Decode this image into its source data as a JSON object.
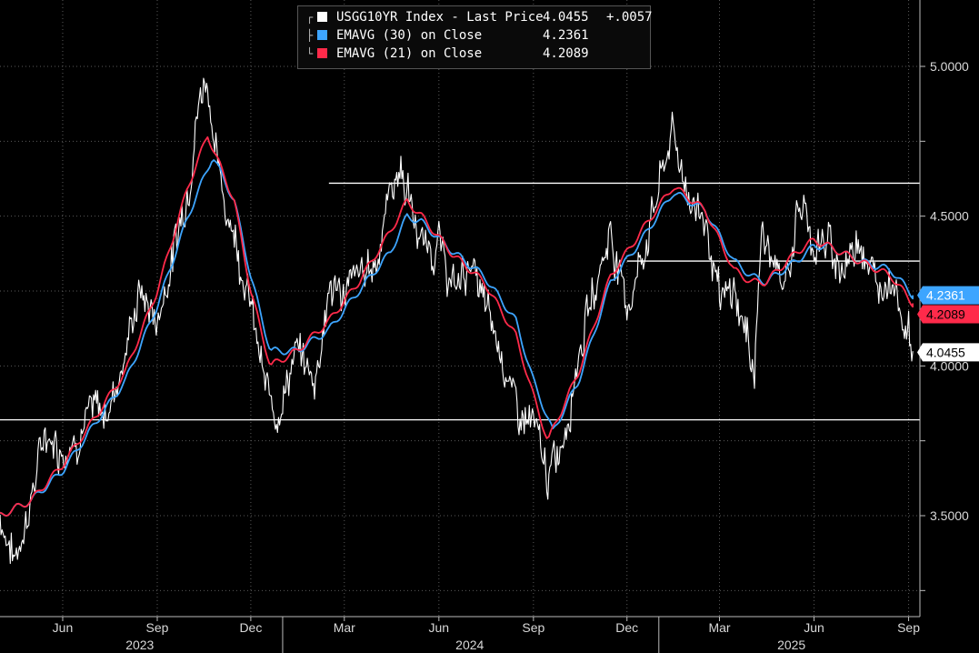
{
  "legend": {
    "items": [
      {
        "name": "USGG10YR Index - Last Price",
        "value": "4.0455",
        "change": "+.0057",
        "color": "#ffffff"
      },
      {
        "name": "EMAVG (30)  on Close",
        "value": "4.2361",
        "change": "",
        "color": "#3da5ff"
      },
      {
        "name": "EMAVG (21)  on Close",
        "value": "4.2089",
        "change": "",
        "color": "#ff2a4a"
      }
    ]
  },
  "tags": {
    "ema30": "4.2361",
    "ema21": "4.2089",
    "last": "4.0455"
  },
  "colors": {
    "background": "#000000",
    "price": "#ffffff",
    "ema30": "#3da5ff",
    "ema21": "#ff2a4a",
    "grid": "#5a5a5a"
  },
  "chart_data": {
    "type": "line",
    "x_ticks": [
      "Jun",
      "Sep",
      "Dec",
      "Mar",
      "Jun",
      "Sep",
      "Dec",
      "Mar",
      "Jun",
      "Sep"
    ],
    "years": [
      "2023",
      "2024",
      "2025"
    ],
    "y_ticks": [
      "5.0000",
      "4.5000",
      "4.0000",
      "3.5000"
    ],
    "ylim": [
      3.25,
      5.1
    ],
    "xlim": [
      "2023-04-01",
      "2025-09-12"
    ],
    "grid": true,
    "legend_position": "top-center",
    "horizontal_lines": [
      {
        "y": 4.61,
        "from": "2024-02-15",
        "to": "2025-09-12"
      },
      {
        "y": 4.35,
        "from": "2024-12-01",
        "to": "2025-09-12"
      },
      {
        "y": 3.82,
        "from": "2023-04-01",
        "to": "2025-09-12"
      }
    ],
    "series": [
      {
        "name": "USGG10YR Index - Last Price",
        "style": "price",
        "x": [
          "2023-04-01",
          "2023-04-15",
          "2023-05-01",
          "2023-05-15",
          "2023-06-01",
          "2023-06-15",
          "2023-07-01",
          "2023-07-15",
          "2023-08-01",
          "2023-08-15",
          "2023-09-01",
          "2023-09-15",
          "2023-10-01",
          "2023-10-10",
          "2023-10-19",
          "2023-11-01",
          "2023-11-15",
          "2023-12-01",
          "2023-12-15",
          "2023-12-27",
          "2024-01-15",
          "2024-02-01",
          "2024-02-15",
          "2024-03-01",
          "2024-03-15",
          "2024-04-01",
          "2024-04-15",
          "2024-04-25",
          "2024-05-15",
          "2024-06-01",
          "2024-06-15",
          "2024-07-01",
          "2024-07-15",
          "2024-08-01",
          "2024-08-15",
          "2024-09-01",
          "2024-09-16",
          "2024-10-01",
          "2024-10-15",
          "2024-11-01",
          "2024-11-15",
          "2024-12-01",
          "2024-12-15",
          "2025-01-01",
          "2025-01-14",
          "2025-02-01",
          "2025-02-15",
          "2025-03-01",
          "2025-03-15",
          "2025-04-04",
          "2025-04-11",
          "2025-05-01",
          "2025-05-20",
          "2025-06-01",
          "2025-06-15",
          "2025-07-01",
          "2025-07-15",
          "2025-08-01",
          "2025-08-15",
          "2025-09-05"
        ],
        "y": [
          3.5,
          3.35,
          3.55,
          3.78,
          3.72,
          3.77,
          3.85,
          3.85,
          4.05,
          4.25,
          4.15,
          4.35,
          4.6,
          4.85,
          4.98,
          4.6,
          4.45,
          4.2,
          3.92,
          3.85,
          4.05,
          3.95,
          4.25,
          4.25,
          4.3,
          4.35,
          4.6,
          4.66,
          4.4,
          4.4,
          4.25,
          4.35,
          4.2,
          4.05,
          3.85,
          3.8,
          3.62,
          3.78,
          4.05,
          4.28,
          4.45,
          4.2,
          4.35,
          4.6,
          4.78,
          4.55,
          4.5,
          4.2,
          4.25,
          4.0,
          4.45,
          4.25,
          4.55,
          4.4,
          4.4,
          4.32,
          4.45,
          4.25,
          4.32,
          4.0455
        ]
      },
      {
        "name": "EMAVG (30)  on Close",
        "style": "ema30",
        "x": [
          "2023-04-01",
          "2023-05-01",
          "2023-06-01",
          "2023-07-01",
          "2023-08-01",
          "2023-09-01",
          "2023-10-01",
          "2023-10-25",
          "2023-11-15",
          "2023-12-01",
          "2023-12-20",
          "2024-01-15",
          "2024-02-15",
          "2024-03-15",
          "2024-04-15",
          "2024-05-01",
          "2024-05-15",
          "2024-06-15",
          "2024-07-15",
          "2024-08-15",
          "2024-09-01",
          "2024-09-20",
          "2024-10-15",
          "2024-11-15",
          "2024-12-15",
          "2025-01-15",
          "2025-02-15",
          "2025-03-15",
          "2025-04-01",
          "2025-04-15",
          "2025-05-15",
          "2025-06-01",
          "2025-06-15",
          "2025-07-15",
          "2025-08-15",
          "2025-09-05"
        ],
        "y": [
          3.5,
          3.55,
          3.65,
          3.8,
          3.95,
          4.2,
          4.5,
          4.7,
          4.55,
          4.3,
          4.05,
          4.05,
          4.12,
          4.25,
          4.38,
          4.5,
          4.48,
          4.38,
          4.3,
          4.15,
          3.95,
          3.78,
          3.95,
          4.28,
          4.42,
          4.58,
          4.52,
          4.35,
          4.3,
          4.28,
          4.35,
          4.4,
          4.4,
          4.35,
          4.32,
          4.2361
        ]
      },
      {
        "name": "EMAVG (21)  on Close",
        "style": "ema21",
        "x": [
          "2023-04-01",
          "2023-05-01",
          "2023-06-01",
          "2023-07-01",
          "2023-08-01",
          "2023-09-01",
          "2023-10-01",
          "2023-10-20",
          "2023-11-15",
          "2023-12-01",
          "2023-12-20",
          "2024-01-15",
          "2024-02-15",
          "2024-03-15",
          "2024-04-15",
          "2024-05-01",
          "2024-05-15",
          "2024-06-15",
          "2024-07-15",
          "2024-08-15",
          "2024-09-01",
          "2024-09-15",
          "2024-10-15",
          "2024-11-15",
          "2024-12-15",
          "2025-01-15",
          "2025-02-15",
          "2025-03-15",
          "2025-04-01",
          "2025-04-15",
          "2025-05-15",
          "2025-06-01",
          "2025-06-15",
          "2025-07-15",
          "2025-08-15",
          "2025-09-05"
        ],
        "y": [
          3.5,
          3.55,
          3.67,
          3.82,
          3.98,
          4.25,
          4.6,
          4.77,
          4.55,
          4.25,
          4.0,
          4.05,
          4.15,
          4.28,
          4.45,
          4.55,
          4.5,
          4.37,
          4.28,
          4.1,
          3.9,
          3.75,
          3.98,
          4.3,
          4.45,
          4.6,
          4.52,
          4.32,
          4.28,
          4.28,
          4.38,
          4.42,
          4.4,
          4.35,
          4.3,
          4.2089
        ]
      }
    ]
  }
}
